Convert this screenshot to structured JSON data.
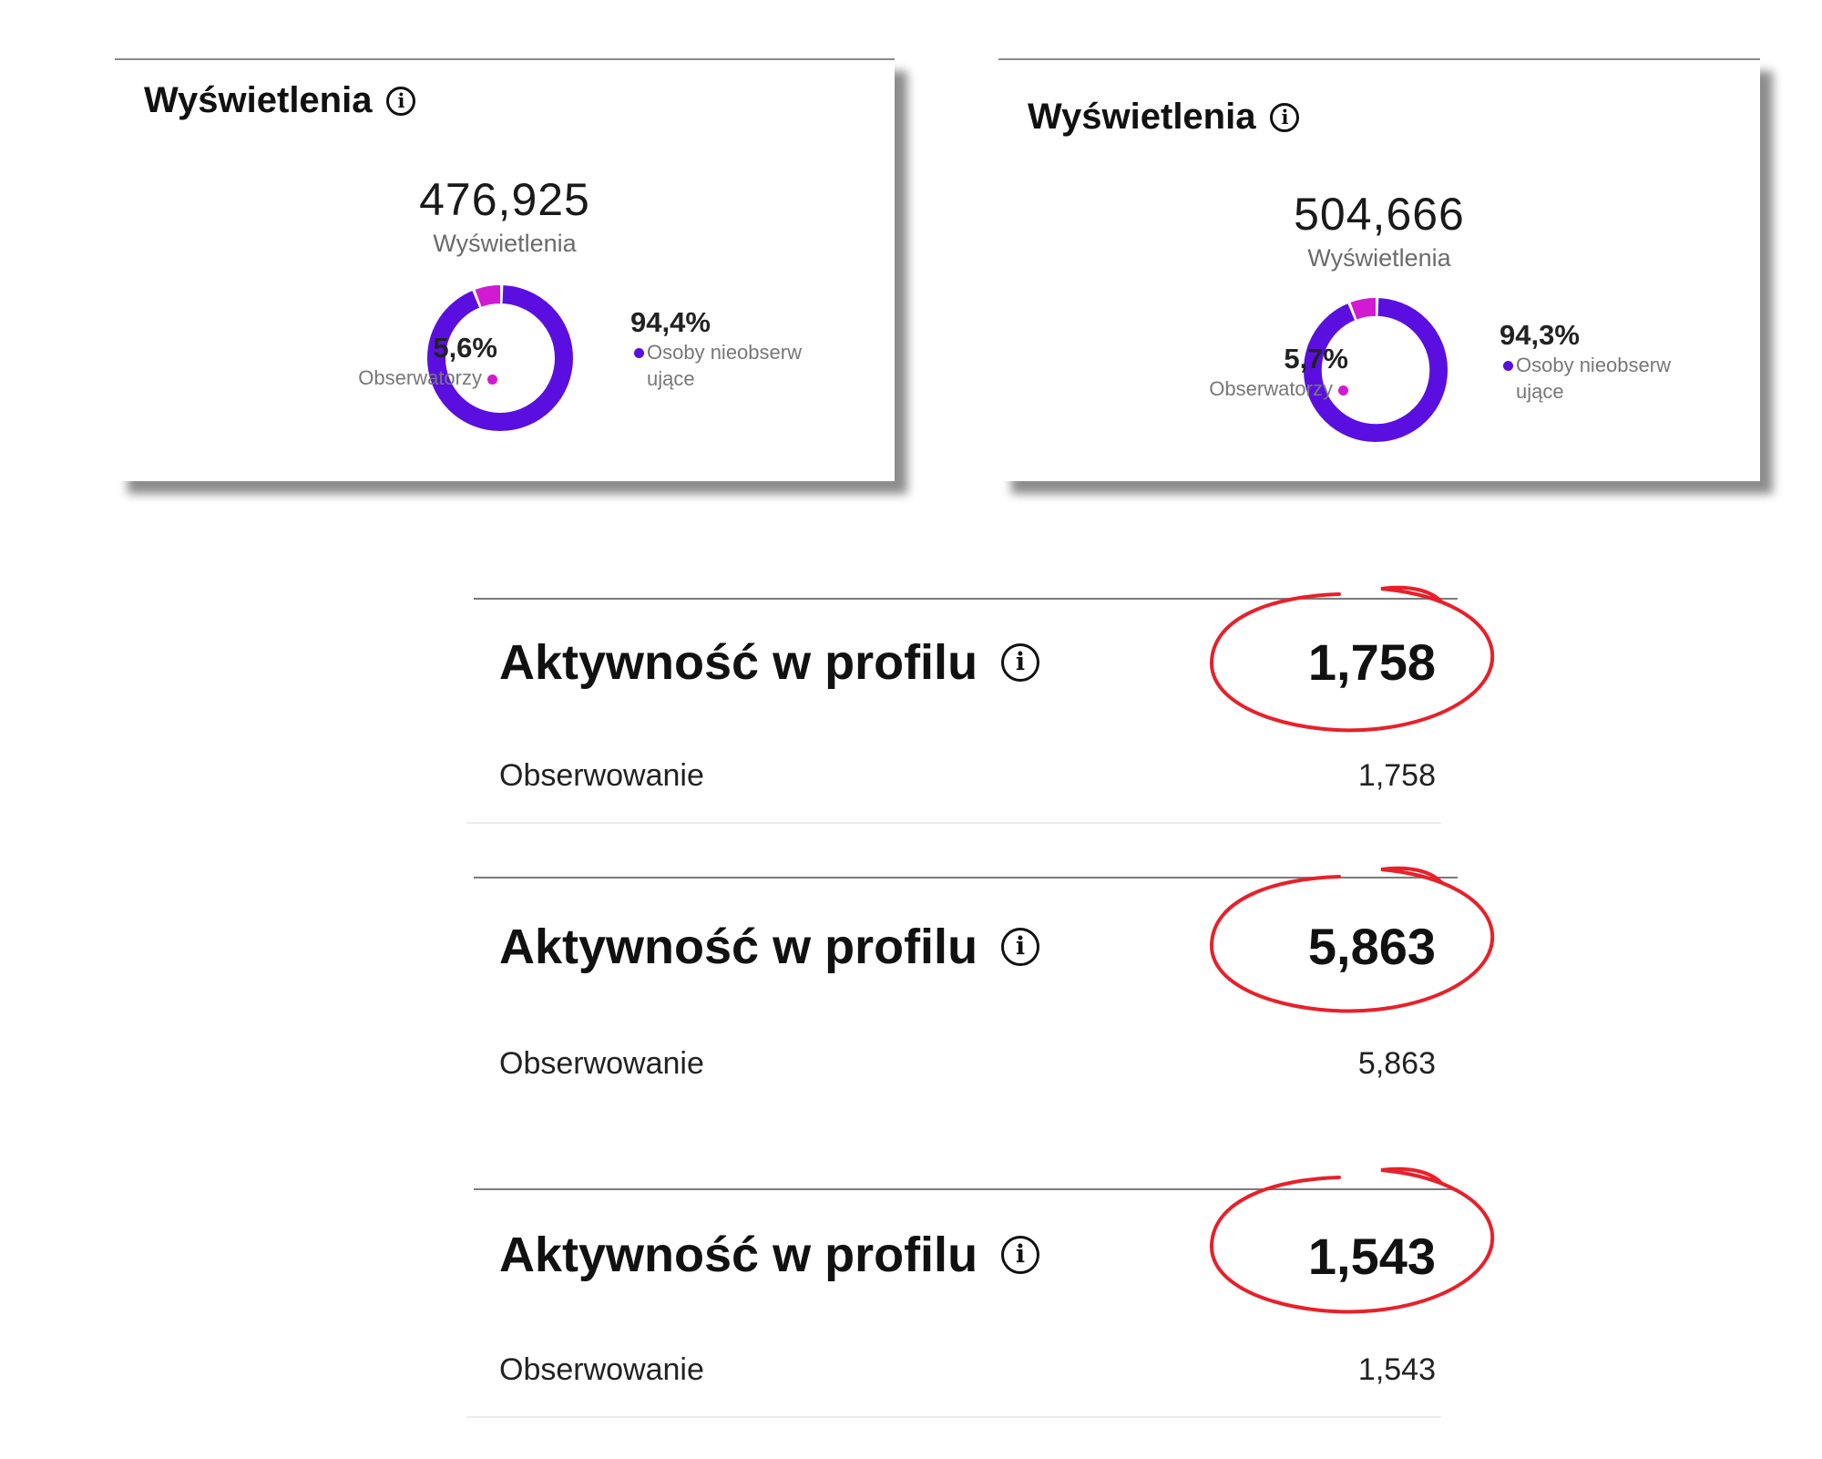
{
  "views_cards": [
    {
      "title": "Wyświetlenia",
      "total": "476,925",
      "total_label": "Wyświetlenia",
      "followers_pct": "5,6%",
      "followers_label": "Obserwatorzy",
      "non_followers_pct": "94,4%",
      "non_followers_label": "Osoby nieobserwujące",
      "followers_share": 0.056
    },
    {
      "title": "Wyświetlenia",
      "total": "504,666",
      "total_label": "Wyświetlenia",
      "followers_pct": "5,7%",
      "followers_label": "Obserwatorzy",
      "non_followers_pct": "94,3%",
      "non_followers_label": "Osoby nieobserwujące",
      "followers_share": 0.057
    }
  ],
  "activity_sections": [
    {
      "title": "Aktywność w profilu",
      "total": "1,758",
      "row_label": "Obserwowanie",
      "row_value": "1,758"
    },
    {
      "title": "Aktywność w profilu",
      "total": "5,863",
      "row_label": "Obserwowanie",
      "row_value": "5,863"
    },
    {
      "title": "Aktywność w profilu",
      "total": "1,543",
      "row_label": "Obserwowanie",
      "row_value": "1,543"
    }
  ],
  "colors": {
    "non_followers": "#5a0fe0",
    "followers": "#d11ad1",
    "annotation_circle": "#e8202a"
  },
  "icons": {
    "info": "info-circle-icon"
  }
}
